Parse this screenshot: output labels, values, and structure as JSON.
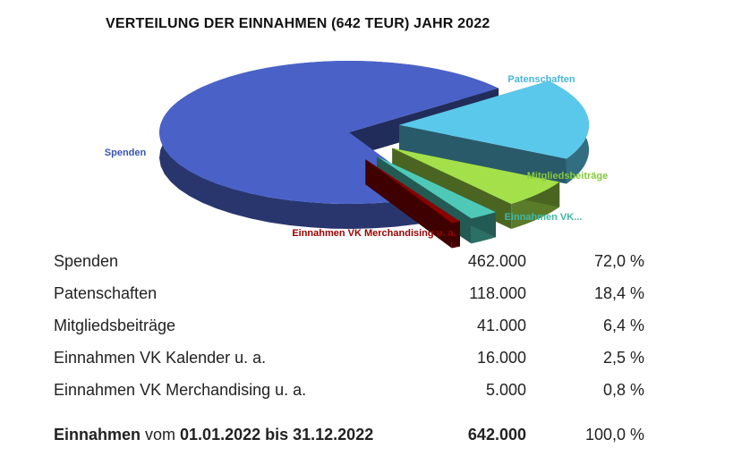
{
  "chart_data": {
    "type": "pie",
    "title": "VERTEILUNG DER EINNAHMEN (642 TEUR) JAHR 2022",
    "categories": [
      "Spenden",
      "Patenschaften",
      "Mitgliedsbeiträge",
      "Einnahmen VK...",
      "Einnahmen VK Merchandising u. a."
    ],
    "values": [
      462000,
      118000,
      41000,
      16000,
      5000
    ],
    "colors": [
      "#4a62c8",
      "#5ac8ea",
      "#a4e04a",
      "#4ec9b8",
      "#8b0000"
    ],
    "label_colors": [
      "#3a54b4",
      "#47b7dd",
      "#86c93a",
      "#3fb8a8",
      "#9b0000"
    ]
  },
  "table": {
    "rows": [
      {
        "name": "Spenden",
        "amount": "462.000",
        "pct": "72,0 %"
      },
      {
        "name": "Patenschaften",
        "amount": "118.000",
        "pct": "18,4 %"
      },
      {
        "name": "Mitgliedsbeiträge",
        "amount": "41.000",
        "pct": "6,4 %"
      },
      {
        "name": "Einnahmen VK Kalender u. a.",
        "amount": "16.000",
        "pct": "2,5 %"
      },
      {
        "name": "Einnahmen VK Merchandising  u. a.",
        "amount": "5.000",
        "pct": "0,8 %"
      }
    ],
    "total": {
      "label_bold_1": "Einnahmen",
      "label_mid": " vom ",
      "label_bold_2": "01.01.2022 bis 31.12.2022",
      "amount": "642.000",
      "pct": "100,0 %"
    }
  }
}
